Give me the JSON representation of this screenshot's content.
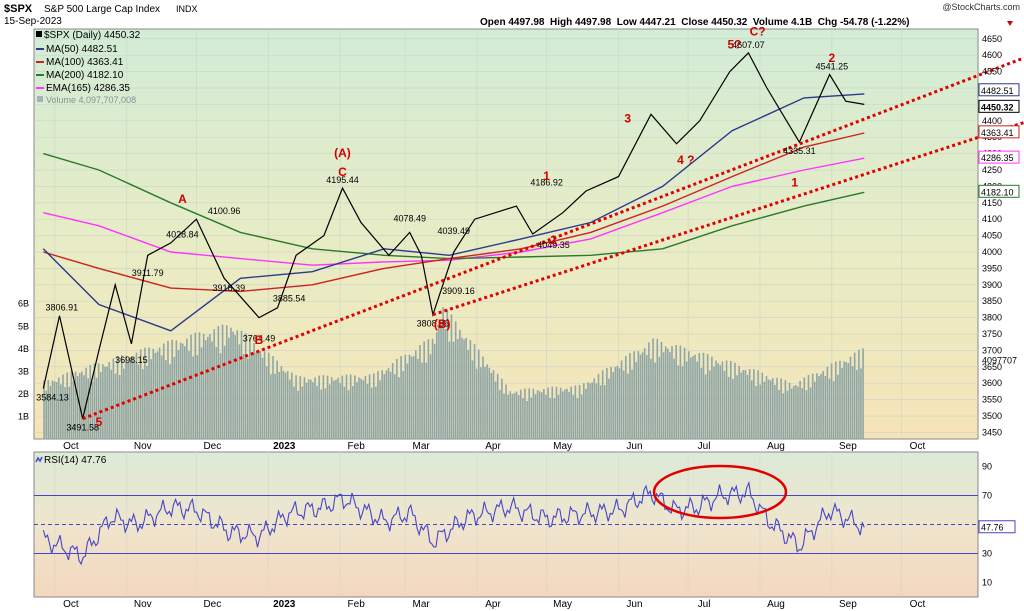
{
  "header": {
    "symbol": "$SPX",
    "name": "S&P 500 Large Cap Index",
    "exchange": "INDX",
    "date": "15-Sep-2023",
    "source": "@StockCharts.com",
    "ohlc_text": "Open 4497.98  High 4497.98  Low 4447.21  Close 4450.32  Volume 4.1B  Chg -54.78 (-1.22%)"
  },
  "legend": {
    "main": "$SPX (Daily) 4450.32",
    "ma50": "MA(50) 4482.51",
    "ma100": "MA(100) 4363.41",
    "ma200": "MA(200) 4182.10",
    "ema165": "EMA(165) 4286.35",
    "volume": "Volume 4,097,707,008"
  },
  "rsi_legend": "RSI(14) 47.76",
  "colors": {
    "price": "#000000",
    "ma50": "#2b3a8c",
    "ma100": "#cc2222",
    "ma200": "#2a7a2a",
    "ema165": "#ff33ff",
    "volume": "#8fa6a6",
    "trendline": "#e00000",
    "rsi": "#4646c8",
    "annotation": "#d40000"
  },
  "chart_data": [
    {
      "type": "line",
      "title": "$SPX S&P 500 Large Cap Index INDX",
      "x_tick_labels": [
        "Oct",
        "Nov",
        "Dec",
        "2023",
        "Feb",
        "Mar",
        "Apr",
        "May",
        "Jun",
        "Jul",
        "Aug",
        "Sep",
        "Oct"
      ],
      "y_tick_labels": [
        "4650",
        "4600",
        "4550",
        "4500",
        "4450",
        "4400",
        "4350",
        "4300",
        "4250",
        "4200",
        "4150",
        "4100",
        "4050",
        "4000",
        "3950",
        "3900",
        "3850",
        "3800",
        "3750",
        "3700",
        "3650",
        "3600",
        "3550",
        "3500",
        "3450"
      ],
      "volume_tick_labels": [
        "1B",
        "2B",
        "3B",
        "4B",
        "5B",
        "6B"
      ],
      "ylim": [
        3430,
        4680
      ],
      "series": [
        {
          "name": "$SPX (Daily) 4450.32",
          "x": [
            "2022-09-26",
            "2022-10-03",
            "2022-10-13",
            "2022-10-20",
            "2022-10-27",
            "2022-11-03",
            "2022-11-10",
            "2022-11-20",
            "2022-12-01",
            "2022-12-13",
            "2022-12-28",
            "2023-01-05",
            "2023-01-13",
            "2023-01-25",
            "2023-02-02",
            "2023-02-10",
            "2023-02-22",
            "2023-03-03",
            "2023-03-08",
            "2023-03-13",
            "2023-03-22",
            "2023-03-31",
            "2023-04-18",
            "2023-04-25",
            "2023-05-08",
            "2023-05-18",
            "2023-06-01",
            "2023-06-15",
            "2023-06-26",
            "2023-07-06",
            "2023-07-19",
            "2023-07-27",
            "2023-08-04",
            "2023-08-18",
            "2023-08-31",
            "2023-09-07",
            "2023-09-15"
          ],
          "values": [
            3584,
            3806,
            3492,
            3700,
            3900,
            3720,
            3990,
            4028,
            4100,
            3920,
            3800,
            3830,
            3990,
            4050,
            4195,
            4090,
            3990,
            4060,
            3990,
            3809,
            4000,
            4100,
            4140,
            4055,
            4120,
            4186,
            4230,
            4420,
            4330,
            4400,
            4550,
            4607,
            4500,
            4335,
            4541,
            4460,
            4450
          ]
        },
        {
          "name": "MA(50) 4482.51",
          "x": [
            "2022-09-26",
            "2022-10-20",
            "2022-11-20",
            "2022-12-20",
            "2023-01-20",
            "2023-02-20",
            "2023-03-20",
            "2023-04-20",
            "2023-05-20",
            "2023-06-20",
            "2023-07-20",
            "2023-08-20",
            "2023-09-15"
          ],
          "values": [
            4010,
            3840,
            3760,
            3920,
            3940,
            4010,
            3990,
            4040,
            4090,
            4200,
            4370,
            4470,
            4482
          ]
        },
        {
          "name": "MA(100) 4363.41",
          "x": [
            "2022-09-26",
            "2022-10-20",
            "2022-11-20",
            "2022-12-20",
            "2023-01-20",
            "2023-02-20",
            "2023-03-20",
            "2023-04-20",
            "2023-05-20",
            "2023-06-20",
            "2023-07-20",
            "2023-08-20",
            "2023-09-15"
          ],
          "values": [
            4000,
            3950,
            3890,
            3880,
            3900,
            3950,
            3980,
            4010,
            4060,
            4140,
            4230,
            4320,
            4363
          ]
        },
        {
          "name": "MA(200) 4182.10",
          "x": [
            "2022-09-26",
            "2022-10-20",
            "2022-11-20",
            "2022-12-20",
            "2023-01-20",
            "2023-02-20",
            "2023-03-20",
            "2023-04-20",
            "2023-05-20",
            "2023-06-20",
            "2023-07-20",
            "2023-08-20",
            "2023-09-15"
          ],
          "values": [
            4300,
            4250,
            4150,
            4060,
            4010,
            3990,
            3980,
            3985,
            3990,
            4010,
            4080,
            4140,
            4182
          ]
        },
        {
          "name": "EMA(165) 4286.35",
          "x": [
            "2022-09-26",
            "2022-10-20",
            "2022-11-20",
            "2022-12-20",
            "2023-01-20",
            "2023-02-20",
            "2023-03-20",
            "2023-04-20",
            "2023-05-20",
            "2023-06-20",
            "2023-07-20",
            "2023-08-20",
            "2023-09-15"
          ],
          "values": [
            4120,
            4080,
            4000,
            3980,
            3960,
            3970,
            3975,
            4000,
            4040,
            4120,
            4200,
            4250,
            4286
          ]
        },
        {
          "name": "Volume 4,097,707,008",
          "x": [
            "2022-09-26",
            "2022-10-13",
            "2022-11-10",
            "2022-12-16",
            "2023-01-13",
            "2023-02-15",
            "2023-03-13",
            "2023-03-17",
            "2023-04-15",
            "2023-05-15",
            "2023-06-16",
            "2023-07-21",
            "2023-08-15",
            "2023-09-15"
          ],
          "values": [
            2.6,
            3.2,
            4.1,
            5.2,
            2.8,
            2.9,
            4.6,
            6.0,
            2.2,
            2.4,
            4.5,
            3.4,
            2.5,
            4.1
          ]
        }
      ],
      "annotations": [
        {
          "text": "3584.13",
          "x": "2022-09-30",
          "y": 3584
        },
        {
          "text": "3806.91",
          "x": "2022-10-04",
          "y": 3807
        },
        {
          "text": "3491.58",
          "x": "2022-10-13",
          "y": 3492
        },
        {
          "text": "3698.15",
          "x": "2022-11-03",
          "y": 3698
        },
        {
          "text": "3911.79",
          "x": "2022-11-10",
          "y": 3912
        },
        {
          "text": "4028.84",
          "x": "2022-11-25",
          "y": 4029
        },
        {
          "text": "4100.96",
          "x": "2022-12-13",
          "y": 4101
        },
        {
          "text": "3918.39",
          "x": "2022-12-15",
          "y": 3918
        },
        {
          "text": "3764.49",
          "x": "2022-12-28",
          "y": 3764
        },
        {
          "text": "3885.54",
          "x": "2023-01-10",
          "y": 3886
        },
        {
          "text": "4195.44",
          "x": "2023-02-02",
          "y": 4195
        },
        {
          "text": "4078.49",
          "x": "2023-03-03",
          "y": 4078
        },
        {
          "text": "4039.49",
          "x": "2023-03-22",
          "y": 4039
        },
        {
          "text": "3909.16",
          "x": "2023-03-24",
          "y": 3909
        },
        {
          "text": "3808.86",
          "x": "2023-03-13",
          "y": 3809
        },
        {
          "text": "4186.92",
          "x": "2023-05-01",
          "y": 4187
        },
        {
          "text": "4049.35",
          "x": "2023-05-04",
          "y": 4049
        },
        {
          "text": "4607.07",
          "x": "2023-07-27",
          "y": 4607
        },
        {
          "text": "4335.31",
          "x": "2023-08-18",
          "y": 4335
        },
        {
          "text": "4541.25",
          "x": "2023-09-01",
          "y": 4541
        }
      ],
      "wave_labels": [
        "5",
        "A",
        "B",
        "C",
        "(A)",
        "(B)",
        "1",
        "2",
        "3",
        "4 ?",
        "5?",
        "C?",
        "1",
        "2"
      ],
      "right_labels": {
        "ma50": "4482.51",
        "close": "4450.32",
        "ma100": "4363.41",
        "ema165": "4286.35",
        "ma200": "4182.10",
        "volume": "4097707"
      }
    },
    {
      "type": "line",
      "title": "RSI(14) 47.76",
      "y_tick_labels": [
        "90",
        "70",
        "50",
        "30",
        "10"
      ],
      "ylim": [
        0,
        100
      ],
      "reference_lines": [
        70,
        50,
        30
      ],
      "series": [
        {
          "name": "RSI(14) 47.76",
          "x": [
            "2022-09-26",
            "2022-10-13",
            "2022-10-25",
            "2022-11-05",
            "2022-11-20",
            "2022-12-01",
            "2022-12-15",
            "2022-12-28",
            "2023-01-10",
            "2023-01-25",
            "2023-02-02",
            "2023-02-20",
            "2023-03-03",
            "2023-03-13",
            "2023-03-28",
            "2023-04-15",
            "2023-05-01",
            "2023-05-15",
            "2023-06-01",
            "2023-06-15",
            "2023-06-25",
            "2023-07-05",
            "2023-07-15",
            "2023-07-27",
            "2023-08-05",
            "2023-08-18",
            "2023-08-31",
            "2023-09-15"
          ],
          "values": [
            40,
            28,
            55,
            50,
            62,
            60,
            45,
            42,
            58,
            62,
            68,
            52,
            58,
            38,
            55,
            62,
            54,
            57,
            60,
            72,
            60,
            62,
            70,
            72,
            52,
            35,
            60,
            48
          ]
        }
      ],
      "right_labels": {
        "rsi": "47.76"
      }
    }
  ]
}
